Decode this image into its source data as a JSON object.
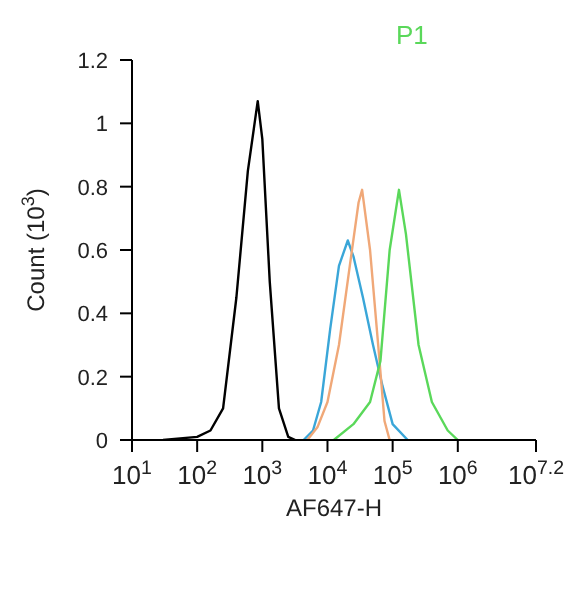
{
  "chart_data": {
    "type": "line",
    "xlabel": "AF647-H",
    "ylabel": "Count (10$^{3}$)",
    "log": "x",
    "xlim": [
      10,
      15848932
    ],
    "xticks": [
      {
        "value": 10,
        "label": "10$^{1}$"
      },
      {
        "value": 100,
        "label": "10$^{2}$"
      },
      {
        "value": 1000,
        "label": "10$^{3}$"
      },
      {
        "value": 10000,
        "label": "10$^{4}$"
      },
      {
        "value": 100000,
        "label": "10$^{5}$"
      },
      {
        "value": 1000000,
        "label": "10$^{6}$"
      },
      {
        "value": 15848932,
        "label": "10$^{7.2}$"
      }
    ],
    "ylim": [
      0,
      1.2
    ],
    "yticks": [
      0,
      0.2,
      0.4,
      0.6,
      0.8,
      1,
      1.2
    ],
    "grid": false,
    "marker": "none",
    "series": [
      {
        "color": "#000000",
        "x": [
          30,
          100,
          160,
          250,
          400,
          600,
          850,
          1000,
          1300,
          1800,
          2500,
          3200
        ],
        "values": [
          0,
          0.01,
          0.03,
          0.1,
          0.45,
          0.85,
          1.07,
          0.95,
          0.5,
          0.1,
          0.01,
          0
        ]
      },
      {
        "color": "#3aa6d8",
        "x": [
          4300,
          6000,
          8000,
          11000,
          15000,
          20500,
          25000,
          35000,
          50000,
          70000,
          100000,
          170000
        ],
        "values": [
          0,
          0.03,
          0.12,
          0.35,
          0.55,
          0.63,
          0.58,
          0.45,
          0.3,
          0.17,
          0.05,
          0
        ]
      },
      {
        "color": "#f0a878",
        "x": [
          4900,
          7000,
          10000,
          15000,
          22000,
          30000,
          34000,
          45000,
          60000,
          75000,
          90000
        ],
        "values": [
          0,
          0.04,
          0.12,
          0.3,
          0.55,
          0.75,
          0.79,
          0.6,
          0.3,
          0.06,
          0
        ]
      },
      {
        "name": "P1",
        "color": "#5ad85a",
        "x": [
          12500,
          25000,
          45000,
          65000,
          90000,
          125000,
          160000,
          250000,
          400000,
          700000,
          1000000
        ],
        "values": [
          0,
          0.05,
          0.12,
          0.25,
          0.6,
          0.79,
          0.65,
          0.3,
          0.12,
          0.03,
          0
        ]
      }
    ]
  }
}
